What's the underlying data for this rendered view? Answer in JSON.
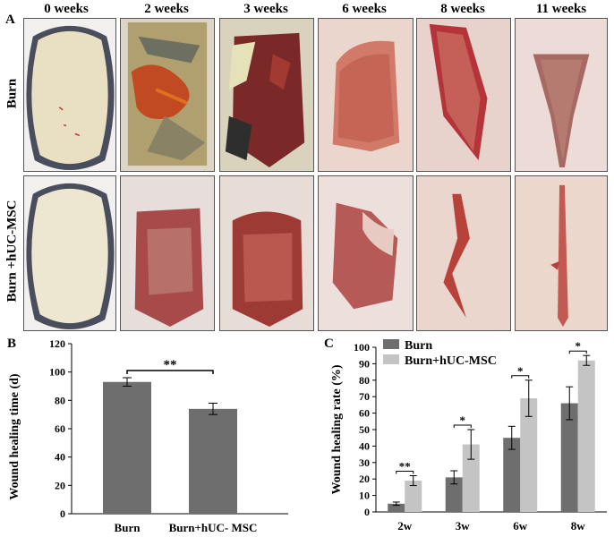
{
  "panel_a": {
    "letter": "A",
    "weeks": [
      "0 weeks",
      "2 weeks",
      "3 weeks",
      "6 weeks",
      "8 weeks",
      "11 weeks"
    ],
    "rows": [
      "Burn",
      "Burn +hUC-MSC"
    ]
  },
  "panel_b": {
    "letter": "B",
    "significance": "**"
  },
  "panel_c": {
    "letter": "C",
    "legend": [
      "Burn",
      "Burn+hUC-MSC"
    ],
    "significance": [
      "**",
      "*",
      "*",
      "*"
    ]
  },
  "colors": {
    "burn": "#6e6e6e",
    "huc": "#c4c4c4"
  },
  "chart_data": [
    {
      "type": "bar",
      "ylabel": "Wound healing time (d)",
      "categories": [
        "Burn",
        "Burn+hUC- MSC"
      ],
      "values": [
        93,
        74
      ],
      "error": [
        3,
        4
      ],
      "ylim": [
        0,
        120
      ],
      "yticks": [
        "0",
        "20",
        "40",
        "60",
        "80",
        "100",
        "120"
      ]
    },
    {
      "type": "bar",
      "ylabel": "Wound healing rate (%)",
      "categories": [
        "2w",
        "3w",
        "6w",
        "8w"
      ],
      "series": [
        {
          "name": "Burn",
          "values": [
            5,
            21,
            45,
            66
          ],
          "error": [
            1,
            4,
            7,
            10
          ]
        },
        {
          "name": "Burn+hUC-MSC",
          "values": [
            19,
            41,
            69,
            92
          ],
          "error": [
            3,
            9,
            11,
            3
          ]
        }
      ],
      "ylim": [
        0,
        100
      ],
      "yticks": [
        "0",
        "10",
        "20",
        "30",
        "40",
        "50",
        "60",
        "70",
        "80",
        "90",
        "100"
      ]
    }
  ]
}
